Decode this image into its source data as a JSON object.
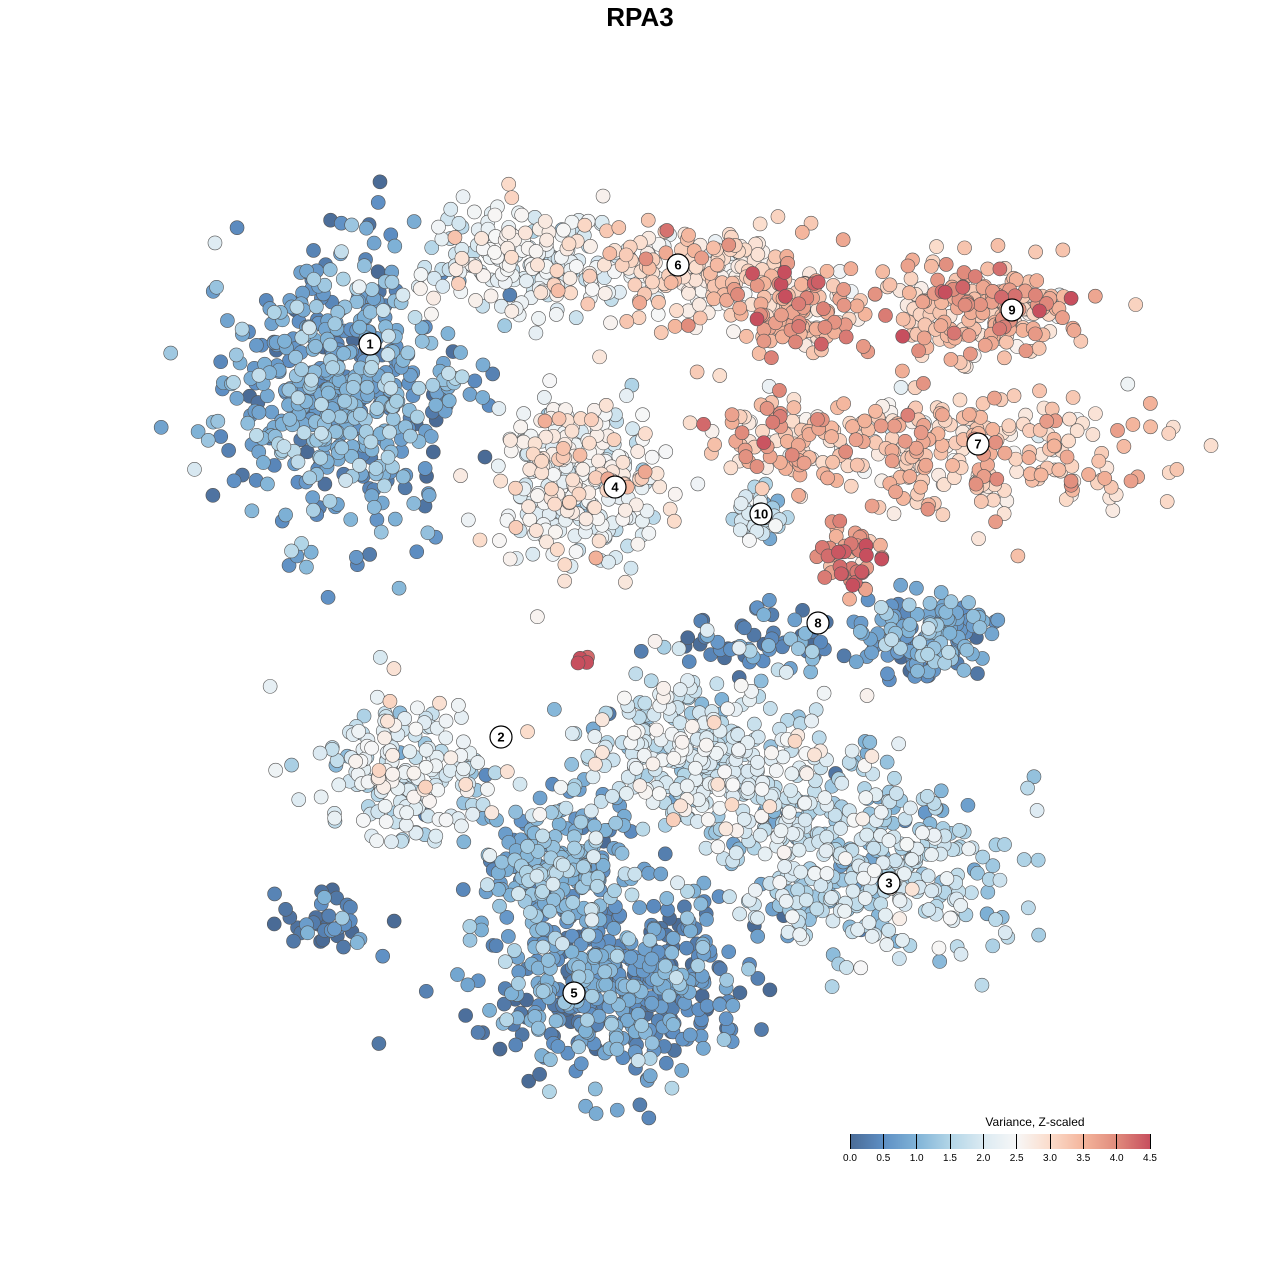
{
  "chart_data": {
    "type": "scatter",
    "title": "RPA3",
    "xlabel": "",
    "ylabel": "",
    "grid": false,
    "xlim": [
      -45,
      50
    ],
    "ylim": [
      -46,
      46
    ],
    "legend": {
      "title": "Variance, Z-scaled",
      "placement": "bottom-right",
      "range": [
        0,
        4.5
      ],
      "ticks": [
        "0.0",
        "0.5",
        "1.0",
        "1.5",
        "2.0",
        "2.5",
        "3.0",
        "3.5",
        "4.0",
        "4.5"
      ],
      "colors": [
        "#4a6b96",
        "#5e8fc4",
        "#80b3d7",
        "#b2d5e7",
        "#dbeaf2",
        "#f7f7f7",
        "#fbdccb",
        "#f4b59c",
        "#e08b7c",
        "#c74f5e"
      ]
    },
    "point_note": "clusters summarised as centre/spread/count/mean value",
    "clusters": [
      {
        "id": "1",
        "x": -30,
        "y": 25,
        "sx": 7,
        "sy": 9,
        "n": 550,
        "value": 0.8
      },
      {
        "id": "6",
        "x": -12,
        "y": 38,
        "sx": 7,
        "sy": 3.5,
        "n": 200,
        "value": 2.2
      },
      {
        "id": "6",
        "x": 6,
        "y": 37,
        "sx": 7,
        "sy": 3,
        "n": 200,
        "value": 2.9
      },
      {
        "id": "6",
        "x": 16,
        "y": 33,
        "sx": 4,
        "sy": 3,
        "n": 120,
        "value": 3.5
      },
      {
        "id": "9",
        "x": 34,
        "y": 33,
        "sx": 6,
        "sy": 3,
        "n": 200,
        "value": 3.4
      },
      {
        "id": "7",
        "x": 32,
        "y": 19,
        "sx": 11,
        "sy": 4,
        "n": 260,
        "value": 3.2
      },
      {
        "id": "7",
        "x": 14,
        "y": 20,
        "sx": 5,
        "sy": 2.5,
        "n": 80,
        "value": 3.3
      },
      {
        "id": "4",
        "x": -6,
        "y": 16,
        "sx": 5,
        "sy": 5,
        "n": 300,
        "value": 2.4
      },
      {
        "id": "10",
        "x": 12,
        "y": 12.5,
        "sx": 1.5,
        "sy": 1.5,
        "n": 40,
        "value": 1.7
      },
      {
        "id": "7",
        "x": 20.5,
        "y": 8.5,
        "sx": 2,
        "sy": 2,
        "n": 50,
        "value": 3.9
      },
      {
        "id": "8",
        "x": 29,
        "y": 0,
        "sx": 4,
        "sy": 2.5,
        "n": 150,
        "value": 0.8
      },
      {
        "id": "8",
        "x": 12,
        "y": 0,
        "sx": 6,
        "sy": 2,
        "n": 60,
        "value": 0.6
      },
      {
        "id": "2",
        "x": -24,
        "y": -13,
        "sx": 5,
        "sy": 4.5,
        "n": 200,
        "value": 2.0
      },
      {
        "id": "3",
        "x": 6,
        "y": -12,
        "sx": 8,
        "sy": 5,
        "n": 350,
        "value": 1.9
      },
      {
        "id": "3",
        "x": 23,
        "y": -22,
        "sx": 9,
        "sy": 5.5,
        "n": 400,
        "value": 1.6
      },
      {
        "id": "5",
        "x": -8,
        "y": -23,
        "sx": 5,
        "sy": 5,
        "n": 250,
        "value": 1.0
      },
      {
        "id": "5",
        "x": -2,
        "y": -35,
        "sx": 8,
        "sy": 5,
        "n": 450,
        "value": 0.6
      },
      {
        "id": "2",
        "x": -31,
        "y": -28,
        "sx": 3,
        "sy": 2,
        "n": 40,
        "value": 0.3
      },
      {
        "id": "4",
        "x": -6,
        "y": -2,
        "sx": 0.5,
        "sy": 0.4,
        "n": 5,
        "value": 4.4
      }
    ],
    "labels": [
      {
        "text": "1",
        "x": -27,
        "y": 29.6
      },
      {
        "text": "6",
        "x": 3.8,
        "y": 37.5
      },
      {
        "text": "9",
        "x": 37.2,
        "y": 33
      },
      {
        "text": "7",
        "x": 33.8,
        "y": 19.6
      },
      {
        "text": "4",
        "x": -2.5,
        "y": 15.3
      },
      {
        "text": "10",
        "x": 12.1,
        "y": 12.6
      },
      {
        "text": "8",
        "x": 17.8,
        "y": 1.7
      },
      {
        "text": "2",
        "x": -13.9,
        "y": -9.7
      },
      {
        "text": "3",
        "x": 24.9,
        "y": -24.3
      },
      {
        "text": "5",
        "x": -6.6,
        "y": -35.3
      }
    ]
  }
}
